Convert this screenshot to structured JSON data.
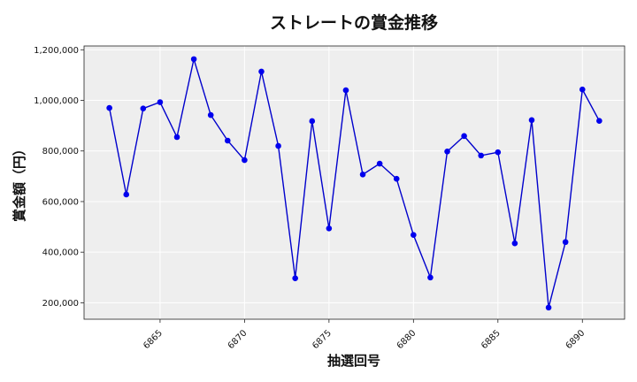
{
  "chart_data": {
    "type": "line",
    "title": "ストレートの賞金推移",
    "xlabel": "抽選回号",
    "ylabel": "賞金額（円）",
    "xlim": [
      6860.5,
      6892.5
    ],
    "ylim": [
      135000,
      1215000
    ],
    "x_ticks": [
      6865,
      6870,
      6875,
      6880,
      6885,
      6890
    ],
    "y_ticks": [
      200000,
      400000,
      600000,
      800000,
      1000000,
      1200000
    ],
    "y_tick_labels": [
      "200,000",
      "400,000",
      "600,000",
      "800,000",
      "1,000,000",
      "1,200,000"
    ],
    "grid": true,
    "colors": {
      "line": "#0000cc",
      "marker": "#0000ee",
      "plot_bg": "#eeeeee",
      "grid": "#ffffff"
    },
    "series": [
      {
        "x": [
          6862,
          6863,
          6864,
          6865,
          6866,
          6867,
          6868,
          6869,
          6870,
          6871,
          6872,
          6873,
          6874,
          6875,
          6876,
          6877,
          6878,
          6879,
          6880,
          6881,
          6882,
          6883,
          6884,
          6885,
          6886,
          6887,
          6888,
          6889,
          6890,
          6891
        ],
        "values": [
          970000,
          628000,
          968000,
          993000,
          855000,
          1163000,
          942000,
          841000,
          764000,
          1114000,
          820000,
          297000,
          918000,
          494000,
          1040000,
          707000,
          750000,
          690000,
          468000,
          300000,
          798000,
          859000,
          782000,
          795000,
          435000,
          922000,
          181000,
          440000,
          1043000,
          919000
        ]
      }
    ]
  }
}
